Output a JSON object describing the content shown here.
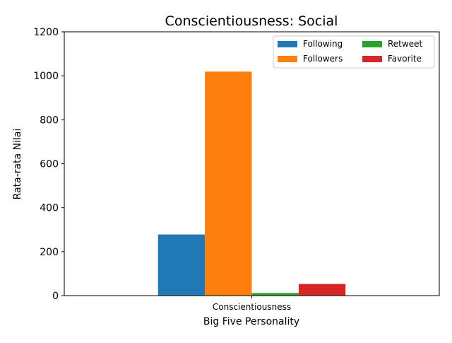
{
  "chart_data": {
    "type": "bar",
    "title": "Conscientiousness: Social",
    "xlabel": "Big Five Personality",
    "ylabel": "Rata-rata Nilai",
    "categories": [
      "Conscientiousness"
    ],
    "series": [
      {
        "name": "Following",
        "values": [
          278
        ],
        "color": "#1f77b4"
      },
      {
        "name": "Followers",
        "values": [
          1019
        ],
        "color": "#ff7f0e"
      },
      {
        "name": "Retweet",
        "values": [
          12
        ],
        "color": "#2ca02c"
      },
      {
        "name": "Favorite",
        "values": [
          53
        ],
        "color": "#d62728"
      }
    ],
    "ylim": [
      0,
      1200
    ],
    "yticks": [
      "0",
      "200",
      "400",
      "600",
      "800",
      "1000",
      "1200"
    ],
    "grid": false,
    "legend": {
      "placement": "top-right",
      "columns": 2
    }
  }
}
